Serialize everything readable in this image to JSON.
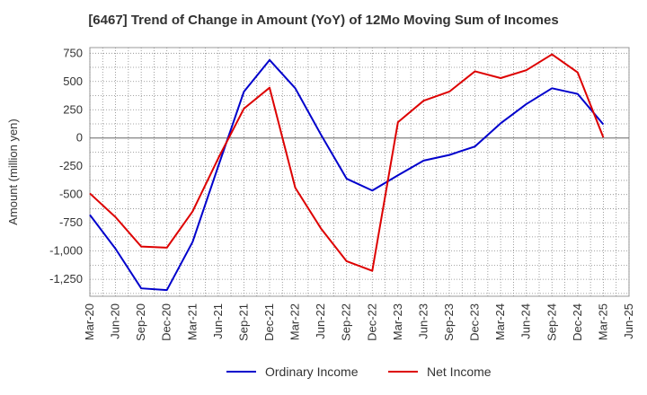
{
  "chart_data": {
    "type": "line",
    "title": "[6467]  Trend of Change in Amount (YoY) of 12Mo Moving Sum of Incomes",
    "ylabel": "Amount (million yen)",
    "xlabel": "",
    "ylim": [
      -1400,
      800
    ],
    "yticks": [
      750,
      500,
      250,
      0,
      -250,
      -500,
      -750,
      -1000,
      -1250
    ],
    "ytick_labels": [
      "750",
      "500",
      "250",
      "0",
      "-250",
      "-500",
      "-750",
      "-1,000",
      "-1,250"
    ],
    "categories": [
      "Mar-20",
      "Jun-20",
      "Sep-20",
      "Dec-20",
      "Mar-21",
      "Jun-21",
      "Sep-21",
      "Dec-21",
      "Mar-22",
      "Jun-22",
      "Sep-22",
      "Dec-22",
      "Mar-23",
      "Jun-23",
      "Sep-23",
      "Dec-23",
      "Mar-24",
      "Jun-24",
      "Sep-24",
      "Dec-24",
      "Mar-25",
      "Jun-25"
    ],
    "grid": true,
    "legend_position": "bottom",
    "series": [
      {
        "name": "Ordinary Income",
        "color": "#0000cc",
        "values": [
          -680,
          -980,
          -1330,
          -1345,
          -920,
          -250,
          410,
          690,
          440,
          30,
          -360,
          -465,
          -330,
          -200,
          -150,
          -75,
          130,
          300,
          440,
          390,
          120,
          null
        ]
      },
      {
        "name": "Net Income",
        "color": "#dd0000",
        "values": [
          -490,
          -700,
          -960,
          -970,
          -650,
          -180,
          260,
          445,
          -440,
          -800,
          -1090,
          -1175,
          140,
          330,
          410,
          590,
          530,
          600,
          740,
          580,
          5,
          null
        ]
      }
    ]
  }
}
